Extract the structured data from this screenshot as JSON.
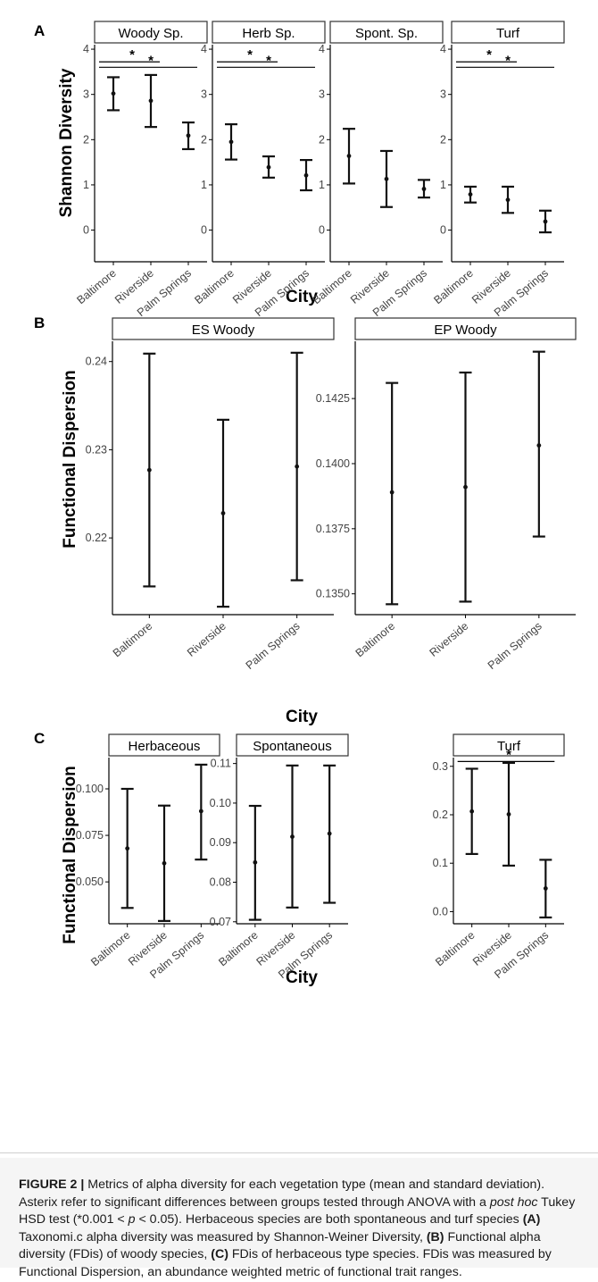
{
  "figure": {
    "caption": {
      "label": "FIGURE 2 |",
      "parts": [
        {
          "t": " Metrics of alpha diversity for each vegetation type (mean and standard deviation). Asterix refer to significant differences between groups tested through ANOVA with a "
        },
        {
          "t": "post hoc",
          "i": true
        },
        {
          "t": " Tukey HSD test (*0.001 < "
        },
        {
          "t": "p",
          "i": true
        },
        {
          "t": " < 0.05). Herbaceous species are both spontaneous and turf species "
        },
        {
          "t": "(A)",
          "b": true
        },
        {
          "t": " Taxonomi.c alpha diversity was measured by Shannon-Weiner Diversity, "
        },
        {
          "t": "(B)",
          "b": true
        },
        {
          "t": " Functional alpha diversity (FDis) of woody species, "
        },
        {
          "t": "(C)",
          "b": true
        },
        {
          "t": " FDis of herbaceous type species. FDis was measured by Functional Dispersion, an abundance weighted metric of functional trait ranges."
        }
      ]
    }
  },
  "chart_data": [
    {
      "panel_label": "A",
      "type": "errorbar",
      "ylabel": "Shannon Diversity",
      "xlabel": "City",
      "categories": [
        "Baltimore",
        "Riverside",
        "Palm Springs"
      ],
      "ylim": [
        -0.7,
        4.1
      ],
      "yticks": [
        0,
        1,
        2,
        3,
        4
      ],
      "ytick_labels": [
        "0",
        "1",
        "2",
        "3",
        "4"
      ],
      "facets": [
        {
          "title": "Woody Sp.",
          "mean": [
            3.02,
            2.86,
            2.09
          ],
          "lower": [
            2.65,
            2.28,
            1.79
          ],
          "upper": [
            3.38,
            3.43,
            2.38
          ],
          "sig": [
            {
              "from": 0,
              "to": 1,
              "y": 3.72,
              "label": "*"
            },
            {
              "from": 0,
              "to": 2,
              "y": 3.6,
              "label": "*"
            }
          ]
        },
        {
          "title": "Herb Sp.",
          "mean": [
            1.95,
            1.39,
            1.21
          ],
          "lower": [
            1.56,
            1.16,
            0.88
          ],
          "upper": [
            2.34,
            1.63,
            1.55
          ],
          "sig": [
            {
              "from": 0,
              "to": 1,
              "y": 3.72,
              "label": "*"
            },
            {
              "from": 0,
              "to": 2,
              "y": 3.6,
              "label": "*"
            }
          ]
        },
        {
          "title": "Spont. Sp.",
          "mean": [
            1.64,
            1.13,
            0.91
          ],
          "lower": [
            1.03,
            0.51,
            0.72
          ],
          "upper": [
            2.24,
            1.75,
            1.11
          ],
          "sig": []
        },
        {
          "title": "Turf",
          "mean": [
            0.79,
            0.67,
            0.19
          ],
          "lower": [
            0.61,
            0.38,
            -0.05
          ],
          "upper": [
            0.96,
            0.96,
            0.43
          ],
          "sig": [
            {
              "from": 0,
              "to": 1,
              "y": 3.72,
              "label": "*"
            },
            {
              "from": 0,
              "to": 2,
              "y": 3.6,
              "label": "*"
            }
          ]
        }
      ]
    },
    {
      "panel_label": "B",
      "type": "errorbar",
      "ylabel": "Functional Dispersion",
      "xlabel": "City",
      "categories": [
        "Baltimore",
        "Riverside",
        "Palm Springs"
      ],
      "facets": [
        {
          "title": "ES Woody",
          "ylim": [
            0.2113,
            0.2423
          ],
          "yticks": [
            0.22,
            0.23,
            0.24
          ],
          "ytick_labels": [
            "0.22",
            "0.23",
            "0.24"
          ],
          "mean": [
            0.2277,
            0.2228,
            0.2281
          ],
          "lower": [
            0.2145,
            0.2122,
            0.2152
          ],
          "upper": [
            0.2409,
            0.2334,
            0.241
          ],
          "sig": []
        },
        {
          "title": "EP Woody",
          "ylim": [
            0.1342,
            0.1447
          ],
          "yticks": [
            0.135,
            0.1375,
            0.14,
            0.1425
          ],
          "ytick_labels": [
            "0.1350",
            "0.1375",
            "0.1400",
            "0.1425"
          ],
          "mean": [
            0.1389,
            0.1391,
            0.1407
          ],
          "lower": [
            0.1346,
            0.1347,
            0.1372
          ],
          "upper": [
            0.1431,
            0.1435,
            0.1443
          ],
          "sig": []
        }
      ]
    },
    {
      "panel_label": "C",
      "type": "errorbar",
      "ylabel": "Functional Dispersion",
      "xlabel": "City",
      "categories": [
        "Baltimore",
        "Riverside",
        "Palm Springs"
      ],
      "facets": [
        {
          "title": "Herbaceous",
          "ylim": [
            0.0275,
            0.1168
          ],
          "yticks": [
            0.05,
            0.075,
            0.1
          ],
          "ytick_labels": [
            "0.050",
            "0.075",
            "0.100"
          ],
          "mean": [
            0.068,
            0.06,
            0.088
          ],
          "lower": [
            0.036,
            0.029,
            0.062
          ],
          "upper": [
            0.1,
            0.091,
            0.113
          ],
          "sig": []
        },
        {
          "title": "Spontaneous",
          "ylim": [
            0.0695,
            0.1115
          ],
          "yticks": [
            0.07,
            0.08,
            0.09,
            0.1,
            0.11
          ],
          "ytick_labels": [
            "0.07",
            "0.08",
            "0.09",
            "0.10",
            "0.11"
          ],
          "mean": [
            0.085,
            0.0915,
            0.0923
          ],
          "lower": [
            0.0705,
            0.0736,
            0.0748
          ],
          "upper": [
            0.0993,
            0.1095,
            0.1095
          ],
          "sig": []
        },
        {
          "title": "Turf",
          "ylim": [
            -0.025,
            0.318
          ],
          "yticks": [
            0,
            0.1,
            0.2,
            0.3
          ],
          "ytick_labels": [
            "0.0",
            "0.1",
            "0.2",
            "0.3"
          ],
          "mean": [
            0.207,
            0.201,
            0.048
          ],
          "lower": [
            0.119,
            0.095,
            -0.012
          ],
          "upper": [
            0.295,
            0.307,
            0.107
          ],
          "sig": [
            {
              "from": 0,
              "to": 2,
              "y": 0.31,
              "label": "*"
            }
          ]
        }
      ]
    }
  ]
}
